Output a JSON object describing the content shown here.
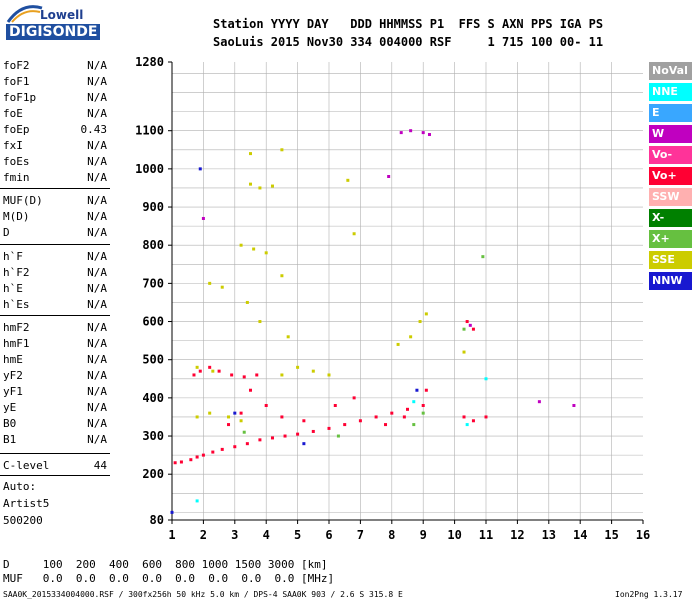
{
  "logo": {
    "line1": "Lowell",
    "line2": "DIGISONDE"
  },
  "header": {
    "line1": "Station YYYY DAY   DDD HHMMSS P1  FFS S AXN PPS IGA PS",
    "line2": "SaoLuis 2015 Nov30 334 004000 RSF     1 715 100 00- 11"
  },
  "params_group1": [
    {
      "name": "foF2",
      "value": "N/A"
    },
    {
      "name": "foF1",
      "value": "N/A"
    },
    {
      "name": "foF1p",
      "value": "N/A"
    },
    {
      "name": "foE",
      "value": "N/A"
    },
    {
      "name": "foEp",
      "value": "0.43"
    },
    {
      "name": "fxI",
      "value": "N/A"
    },
    {
      "name": "foEs",
      "value": "N/A"
    },
    {
      "name": "fmin",
      "value": "N/A"
    }
  ],
  "params_group2": [
    {
      "name": "MUF(D)",
      "value": "N/A"
    },
    {
      "name": "M(D)",
      "value": "N/A"
    },
    {
      "name": "D",
      "value": "N/A"
    }
  ],
  "params_group3": [
    {
      "name": "h`F",
      "value": "N/A"
    },
    {
      "name": "h`F2",
      "value": "N/A"
    },
    {
      "name": "h`E",
      "value": "N/A"
    },
    {
      "name": "h`Es",
      "value": "N/A"
    }
  ],
  "params_group4": [
    {
      "name": "hmF2",
      "value": "N/A"
    },
    {
      "name": "hmF1",
      "value": "N/A"
    },
    {
      "name": "hmE",
      "value": "N/A"
    },
    {
      "name": "yF2",
      "value": "N/A"
    },
    {
      "name": "yF1",
      "value": "N/A"
    },
    {
      "name": "yE",
      "value": "N/A"
    },
    {
      "name": "B0",
      "value": "N/A"
    },
    {
      "name": "B1",
      "value": "N/A"
    }
  ],
  "clevel": {
    "name": "C-level",
    "value": "44"
  },
  "autoscale": {
    "line1": "Auto:",
    "line2": "Artist5",
    "line3": "500200"
  },
  "legend": [
    {
      "label": "NoVal",
      "color": "#a0a0a0"
    },
    {
      "label": "NNE",
      "color": "#00ffff"
    },
    {
      "label": "E",
      "color": "#39a7ff"
    },
    {
      "label": "W",
      "color": "#c000c0"
    },
    {
      "label": "Vo-",
      "color": "#ff3399"
    },
    {
      "label": "Vo+",
      "color": "#ff0033"
    },
    {
      "label": "SSW",
      "color": "#ffb0b0"
    },
    {
      "label": "X-",
      "color": "#008000"
    },
    {
      "label": "X+",
      "color": "#66c040"
    },
    {
      "label": "SSE",
      "color": "#cccc00"
    },
    {
      "label": "NNW",
      "color": "#1818d0"
    }
  ],
  "footer": {
    "d_line": "D     100  200  400  600  800 1000 1500 3000 [km]",
    "muf_line": "MUF   0.0  0.0  0.0  0.0  0.0  0.0  0.0  0.0 [MHz]",
    "file_line": "SAA0K_2015334004000.RSF / 300fx256h 50 kHz 5.0 km / DPS-4 SAA0K 903 / 2.6 S 315.8 E",
    "version": "Ion2Png 1.3.17"
  },
  "chart_data": {
    "type": "scatter",
    "xlabel": "",
    "ylabel": "",
    "xlim": [
      1,
      16
    ],
    "ylim": [
      80,
      1280
    ],
    "x_ticks": [
      1,
      2,
      3,
      4,
      5,
      6,
      7,
      8,
      9,
      10,
      11,
      12,
      13,
      14,
      15,
      16
    ],
    "y_ticks": [
      80,
      200,
      300,
      400,
      500,
      600,
      700,
      800,
      900,
      1000,
      1100,
      1280
    ],
    "grid": true,
    "description_series": [
      {
        "name": "Vo+",
        "color": "#ff0033",
        "points": [
          [
            1.1,
            230
          ],
          [
            1.3,
            232
          ],
          [
            1.6,
            238
          ],
          [
            1.8,
            245
          ],
          [
            2.0,
            250
          ],
          [
            2.3,
            258
          ],
          [
            2.6,
            265
          ],
          [
            3.0,
            272
          ],
          [
            3.4,
            280
          ],
          [
            3.8,
            290
          ],
          [
            4.2,
            295
          ],
          [
            4.6,
            300
          ],
          [
            5.0,
            305
          ],
          [
            5.5,
            312
          ],
          [
            6.0,
            320
          ],
          [
            6.5,
            330
          ],
          [
            7.0,
            340
          ],
          [
            7.5,
            350
          ],
          [
            8.0,
            360
          ],
          [
            8.5,
            370
          ],
          [
            9.0,
            380
          ],
          [
            2.8,
            330
          ],
          [
            3.2,
            360
          ],
          [
            3.5,
            420
          ],
          [
            4.0,
            380
          ],
          [
            4.5,
            350
          ],
          [
            5.2,
            340
          ],
          [
            6.2,
            380
          ],
          [
            6.8,
            400
          ],
          [
            7.8,
            330
          ],
          [
            8.4,
            350
          ],
          [
            9.1,
            420
          ],
          [
            10.3,
            350
          ],
          [
            10.6,
            340
          ],
          [
            11.0,
            350
          ],
          [
            1.7,
            460
          ],
          [
            1.9,
            470
          ],
          [
            2.2,
            480
          ],
          [
            2.5,
            470
          ],
          [
            2.9,
            460
          ],
          [
            3.3,
            455
          ],
          [
            3.7,
            460
          ],
          [
            10.4,
            600
          ],
          [
            10.6,
            580
          ]
        ]
      },
      {
        "name": "SSE",
        "color": "#cccc00",
        "points": [
          [
            3.5,
            960
          ],
          [
            3.8,
            950
          ],
          [
            4.2,
            955
          ],
          [
            3.2,
            800
          ],
          [
            3.6,
            790
          ],
          [
            4.0,
            780
          ],
          [
            4.5,
            720
          ],
          [
            3.4,
            650
          ],
          [
            2.2,
            700
          ],
          [
            2.6,
            690
          ],
          [
            3.8,
            600
          ],
          [
            4.7,
            560
          ],
          [
            5.5,
            470
          ],
          [
            6.0,
            460
          ],
          [
            5.0,
            480
          ],
          [
            4.5,
            460
          ],
          [
            1.8,
            350
          ],
          [
            2.2,
            360
          ],
          [
            2.8,
            350
          ],
          [
            3.2,
            340
          ],
          [
            3.5,
            1040
          ],
          [
            4.5,
            1050
          ],
          [
            6.6,
            970
          ],
          [
            6.8,
            830
          ],
          [
            8.2,
            540
          ],
          [
            8.6,
            560
          ],
          [
            8.9,
            600
          ],
          [
            9.1,
            620
          ],
          [
            10.3,
            520
          ],
          [
            1.8,
            480
          ],
          [
            2.3,
            470
          ]
        ]
      },
      {
        "name": "W",
        "color": "#c000c0",
        "points": [
          [
            8.3,
            1095
          ],
          [
            8.6,
            1100
          ],
          [
            9.0,
            1095
          ],
          [
            9.2,
            1090
          ],
          [
            7.9,
            980
          ],
          [
            2.0,
            870
          ],
          [
            10.5,
            590
          ],
          [
            13.8,
            380
          ],
          [
            12.7,
            390
          ]
        ]
      },
      {
        "name": "X+",
        "color": "#66c040",
        "points": [
          [
            9.0,
            360
          ],
          [
            8.7,
            330
          ],
          [
            3.3,
            310
          ],
          [
            6.3,
            300
          ],
          [
            10.3,
            580
          ],
          [
            10.9,
            770
          ]
        ]
      },
      {
        "name": "NNE",
        "color": "#00ffff",
        "points": [
          [
            1.8,
            130
          ],
          [
            11.0,
            450
          ],
          [
            8.7,
            390
          ],
          [
            10.4,
            330
          ]
        ]
      },
      {
        "name": "NNW",
        "color": "#1818d0",
        "points": [
          [
            3.0,
            360
          ],
          [
            5.2,
            280
          ],
          [
            8.8,
            420
          ],
          [
            1.0,
            100
          ],
          [
            1.9,
            1000
          ]
        ]
      }
    ]
  }
}
